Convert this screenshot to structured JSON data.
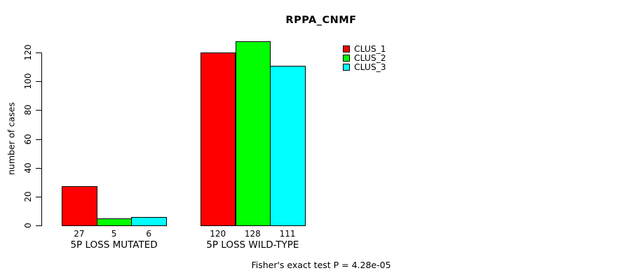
{
  "title": "RPPA_CNMF",
  "footer_note": "Fisher's exact test P = 4.28e-05",
  "chart_data": {
    "type": "bar",
    "title": "RPPA_CNMF",
    "xlabel": "",
    "ylabel": "number of cases",
    "ylim": [
      0,
      120
    ],
    "yticks": [
      0,
      20,
      40,
      60,
      80,
      100,
      120
    ],
    "grid": false,
    "legend_position": "top-right",
    "categories": [
      "5P LOSS MUTATED",
      "5P LOSS WILD-TYPE"
    ],
    "series": [
      {
        "name": "CLUS_1",
        "color": "#ff0000",
        "values": [
          27,
          120
        ]
      },
      {
        "name": "CLUS_2",
        "color": "#00ff00",
        "values": [
          5,
          128
        ]
      },
      {
        "name": "CLUS_3",
        "color": "#00ffff",
        "values": [
          6,
          111
        ]
      }
    ],
    "bar_value_labels": [
      [
        "27",
        "5",
        "6"
      ],
      [
        "120",
        "128",
        "111"
      ]
    ],
    "annotation": "Fisher's exact test P = 4.28e-05"
  }
}
